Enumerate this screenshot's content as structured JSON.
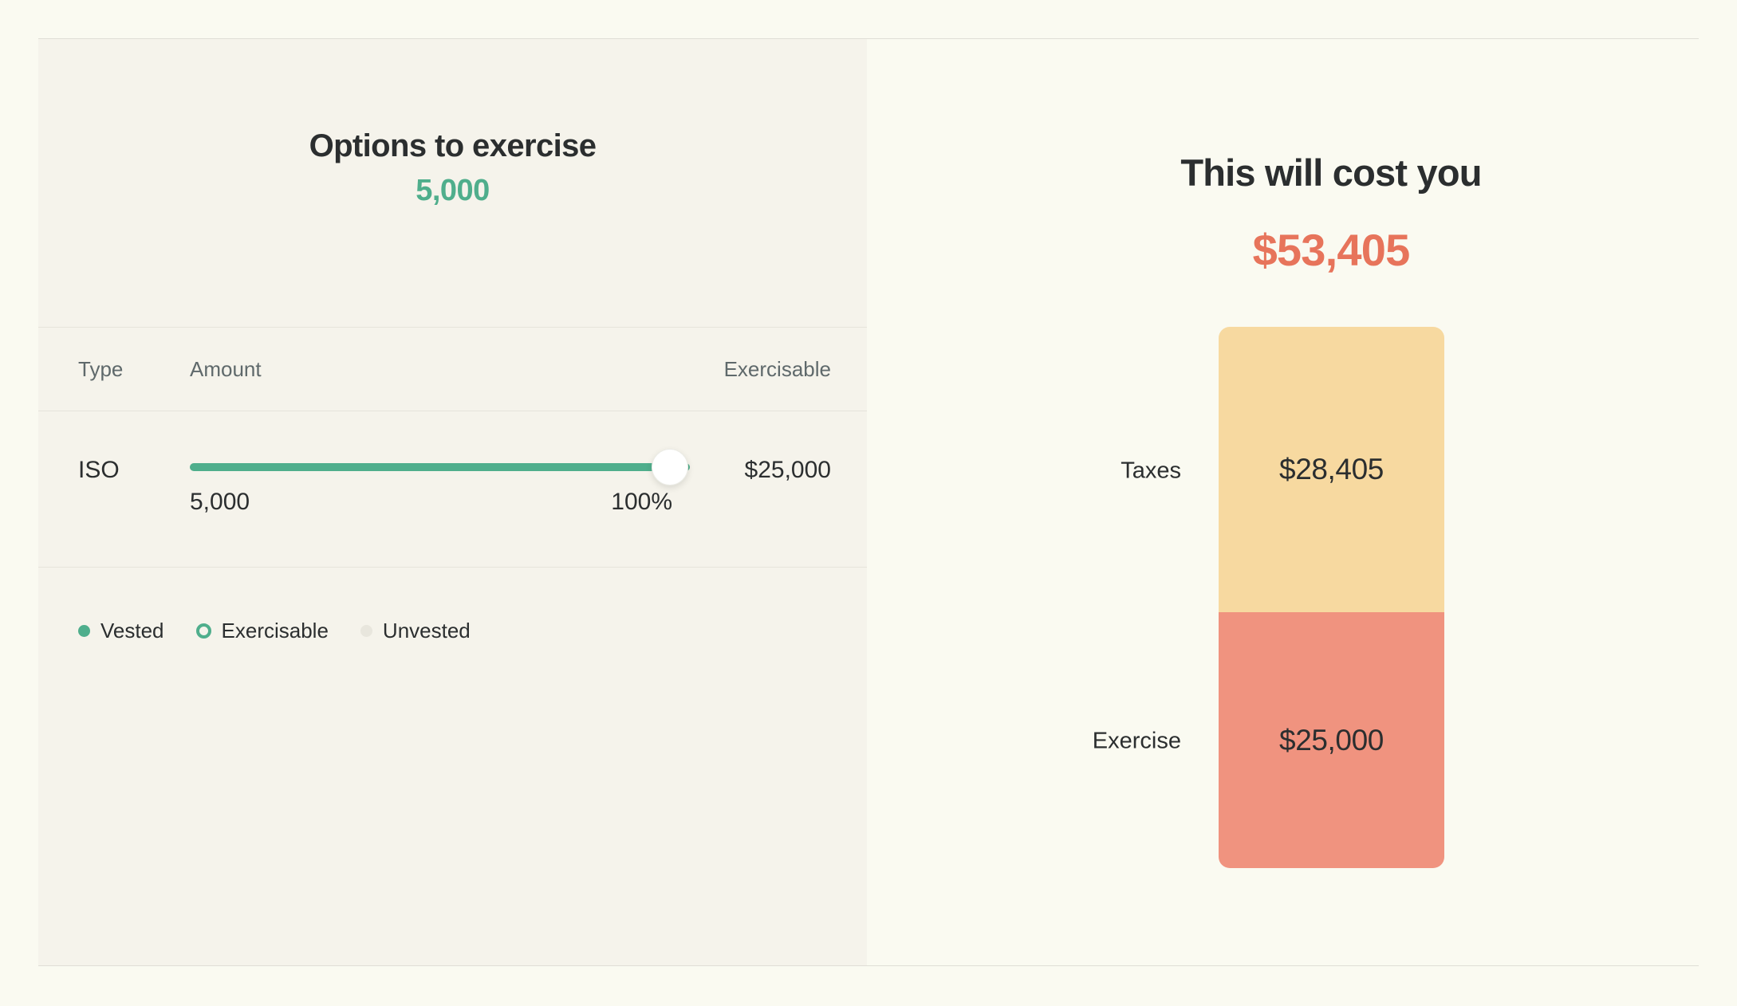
{
  "left_panel": {
    "title": "Options to exercise",
    "options_to_exercise": "5,000",
    "table": {
      "col_type": "Type",
      "col_amount": "Amount",
      "col_exercisable": "Exercisable"
    },
    "row": {
      "type": "ISO",
      "amount_label": "5,000",
      "percent_label": "100%",
      "exercisable_value": "$25,000",
      "slider_percent": 100
    },
    "legend": [
      {
        "label": "Vested",
        "variant": "filled",
        "color": "#4FAE8C"
      },
      {
        "label": "Exercisable",
        "variant": "ring",
        "color": "#4FAE8C"
      },
      {
        "label": "Unvested",
        "variant": "filled",
        "color": "#E8E6DD"
      }
    ]
  },
  "right_panel": {
    "title": "This will cost you",
    "total": "$53,405"
  },
  "chart_data": {
    "type": "bar",
    "stacked": true,
    "orientation": "vertical",
    "title": "This will cost you",
    "total": 53405,
    "total_label": "$53,405",
    "categories": [
      "Taxes",
      "Exercise"
    ],
    "values": [
      28405,
      25000
    ],
    "value_labels": [
      "$28,405",
      "$25,000"
    ],
    "colors": [
      "#F7D9A0",
      "#F0937F"
    ],
    "legend_position": "none",
    "grid": false
  },
  "colors": {
    "page_bg": "#FAFAF1",
    "panel_bg": "#F5F3EB",
    "accent_green": "#4FAE8C",
    "accent_orange": "#E7745B",
    "bar_yellow": "#F7D9A0",
    "bar_salmon": "#F0937F",
    "divider": "#E6E4DB"
  }
}
